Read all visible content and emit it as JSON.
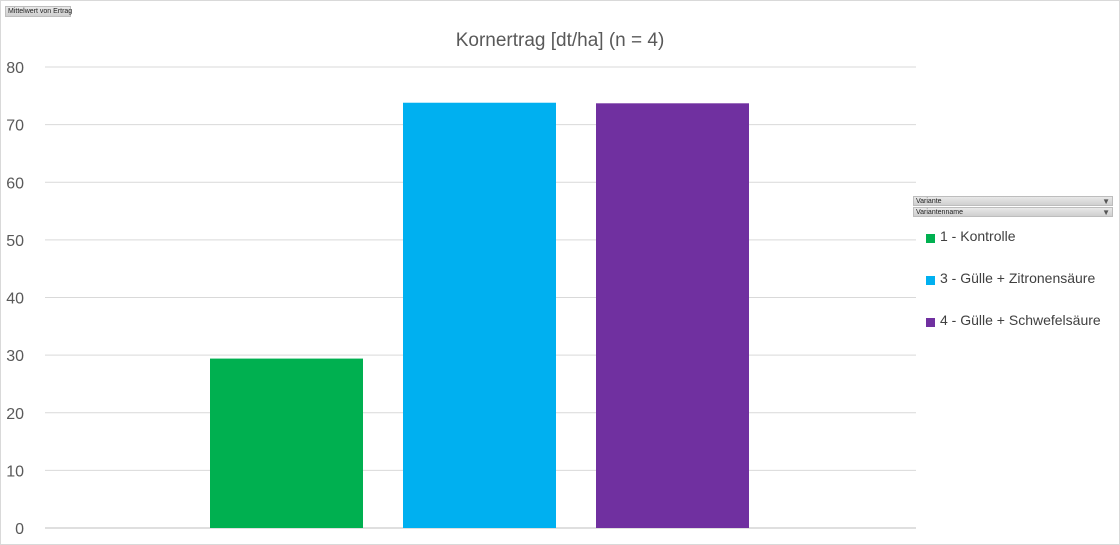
{
  "pivot": {
    "value_field": "Mittelwert von Ertrag",
    "legend_fields": [
      {
        "label": "Variante",
        "icon": "filter-icon"
      },
      {
        "label": "Variantenname",
        "icon": "filter-icon"
      }
    ]
  },
  "chart_data": {
    "type": "bar",
    "title": "Kornertrag [dt/ha]  (n = 4)",
    "xlabel": "",
    "ylabel": "",
    "ylim": [
      0,
      80
    ],
    "yticks": [
      0,
      10,
      20,
      30,
      40,
      50,
      60,
      70,
      80
    ],
    "grid": true,
    "legend_position": "right",
    "series": [
      {
        "name": "1 - Kontrolle",
        "value": 29.4,
        "color": "#00b050"
      },
      {
        "name": "3 - Gülle + Zitronensäure",
        "value": 73.8,
        "color": "#00b0f0"
      },
      {
        "name": "4 - Gülle + Schwefelsäure",
        "value": 73.7,
        "color": "#7030a0"
      }
    ]
  }
}
